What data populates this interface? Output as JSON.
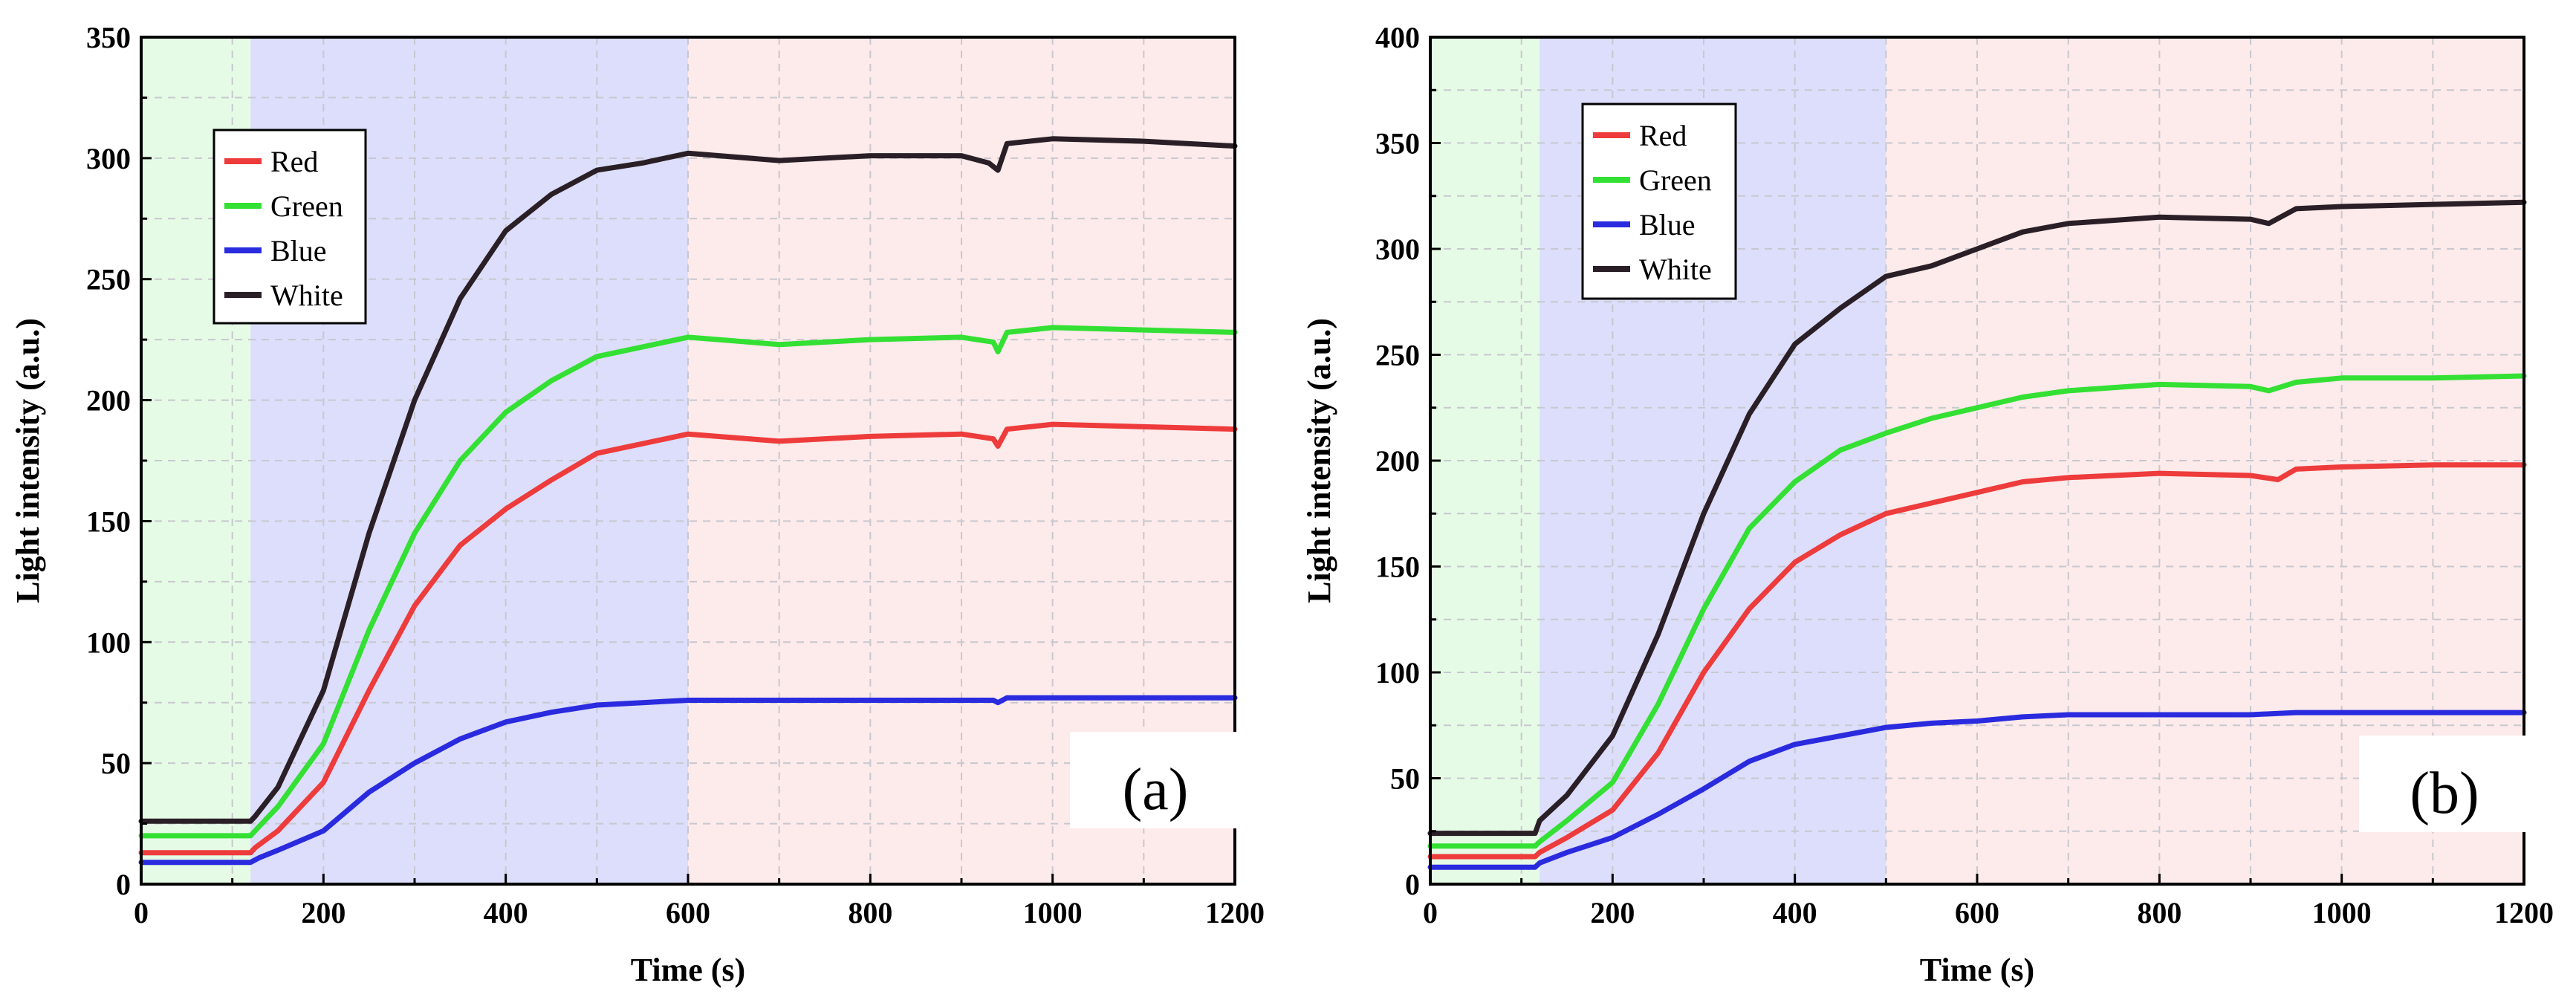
{
  "chart_data": [
    {
      "type": "line",
      "panel_label": "(a)",
      "xlabel": "Time (s)",
      "ylabel": "Light intensity (a.u.)",
      "xlim": [
        0,
        1200
      ],
      "ylim": [
        0,
        350
      ],
      "xticks": [
        0,
        200,
        400,
        600,
        800,
        1000,
        1200
      ],
      "yticks": [
        0,
        50,
        100,
        150,
        200,
        250,
        300,
        350
      ],
      "grid": true,
      "legend_position": "top-left",
      "background_regions": [
        {
          "x": [
            0,
            120
          ],
          "color": "#e5fbe5"
        },
        {
          "x": [
            120,
            600
          ],
          "color": "#dcdefb"
        },
        {
          "x": [
            600,
            1200
          ],
          "color": "#fdeaea"
        }
      ],
      "series": [
        {
          "name": "Red",
          "color": "#ee3b3b",
          "points": [
            [
              0,
              13
            ],
            [
              120,
              13
            ],
            [
              125,
              15
            ],
            [
              150,
              22
            ],
            [
              200,
              42
            ],
            [
              250,
              80
            ],
            [
              300,
              115
            ],
            [
              350,
              140
            ],
            [
              400,
              155
            ],
            [
              450,
              167
            ],
            [
              500,
              178
            ],
            [
              550,
              182
            ],
            [
              600,
              186
            ],
            [
              700,
              183
            ],
            [
              800,
              185
            ],
            [
              900,
              186
            ],
            [
              935,
              184
            ],
            [
              940,
              181
            ],
            [
              950,
              188
            ],
            [
              1000,
              190
            ],
            [
              1100,
              189
            ],
            [
              1200,
              188
            ]
          ]
        },
        {
          "name": "Green",
          "color": "#33e033",
          "points": [
            [
              0,
              20
            ],
            [
              120,
              20
            ],
            [
              125,
              22
            ],
            [
              150,
              32
            ],
            [
              200,
              58
            ],
            [
              250,
              105
            ],
            [
              300,
              145
            ],
            [
              350,
              175
            ],
            [
              400,
              195
            ],
            [
              450,
              208
            ],
            [
              500,
              218
            ],
            [
              550,
              222
            ],
            [
              600,
              226
            ],
            [
              700,
              223
            ],
            [
              800,
              225
            ],
            [
              900,
              226
            ],
            [
              935,
              224
            ],
            [
              940,
              220
            ],
            [
              950,
              228
            ],
            [
              1000,
              230
            ],
            [
              1100,
              229
            ],
            [
              1200,
              228
            ]
          ]
        },
        {
          "name": "Blue",
          "color": "#2a2adf",
          "points": [
            [
              0,
              9
            ],
            [
              120,
              9
            ],
            [
              130,
              11
            ],
            [
              150,
              14
            ],
            [
              200,
              22
            ],
            [
              250,
              38
            ],
            [
              300,
              50
            ],
            [
              350,
              60
            ],
            [
              400,
              67
            ],
            [
              450,
              71
            ],
            [
              500,
              74
            ],
            [
              550,
              75
            ],
            [
              600,
              76
            ],
            [
              800,
              76
            ],
            [
              935,
              76
            ],
            [
              940,
              75
            ],
            [
              950,
              77
            ],
            [
              1200,
              77
            ]
          ]
        },
        {
          "name": "White",
          "color": "#2a1f26",
          "points": [
            [
              0,
              26
            ],
            [
              120,
              26
            ],
            [
              125,
              28
            ],
            [
              150,
              40
            ],
            [
              200,
              80
            ],
            [
              250,
              145
            ],
            [
              300,
              200
            ],
            [
              350,
              242
            ],
            [
              400,
              270
            ],
            [
              450,
              285
            ],
            [
              500,
              295
            ],
            [
              550,
              298
            ],
            [
              600,
              302
            ],
            [
              700,
              299
            ],
            [
              800,
              301
            ],
            [
              900,
              301
            ],
            [
              930,
              298
            ],
            [
              940,
              295
            ],
            [
              950,
              306
            ],
            [
              1000,
              308
            ],
            [
              1100,
              307
            ],
            [
              1200,
              305
            ]
          ]
        }
      ]
    },
    {
      "type": "line",
      "panel_label": "(b)",
      "xlabel": "Time (s)",
      "ylabel": "Light intensity (a.u.)",
      "xlim": [
        0,
        1200
      ],
      "ylim": [
        0,
        400
      ],
      "xticks": [
        0,
        200,
        400,
        600,
        800,
        1000,
        1200
      ],
      "yticks": [
        0,
        50,
        100,
        150,
        200,
        250,
        300,
        350,
        400
      ],
      "grid": true,
      "legend_position": "top-left",
      "background_regions": [
        {
          "x": [
            0,
            120
          ],
          "color": "#e5fbe5"
        },
        {
          "x": [
            120,
            500
          ],
          "color": "#dcdefb"
        },
        {
          "x": [
            500,
            1200
          ],
          "color": "#fdeaea"
        }
      ],
      "series": [
        {
          "name": "Red",
          "color": "#ee3b3b",
          "points": [
            [
              0,
              13
            ],
            [
              115,
              13
            ],
            [
              120,
              15
            ],
            [
              150,
              22
            ],
            [
              200,
              35
            ],
            [
              250,
              62
            ],
            [
              300,
              100
            ],
            [
              350,
              130
            ],
            [
              400,
              152
            ],
            [
              450,
              165
            ],
            [
              500,
              175
            ],
            [
              550,
              180
            ],
            [
              600,
              185
            ],
            [
              650,
              190
            ],
            [
              700,
              192
            ],
            [
              800,
              194
            ],
            [
              900,
              193
            ],
            [
              930,
              191
            ],
            [
              950,
              196
            ],
            [
              1000,
              197
            ],
            [
              1100,
              198
            ],
            [
              1200,
              198
            ]
          ]
        },
        {
          "name": "Green",
          "color": "#33e033",
          "points": [
            [
              0,
              18
            ],
            [
              115,
              18
            ],
            [
              120,
              20
            ],
            [
              150,
              30
            ],
            [
              200,
              48
            ],
            [
              250,
              85
            ],
            [
              300,
              130
            ],
            [
              350,
              168
            ],
            [
              400,
              190
            ],
            [
              450,
              205
            ],
            [
              500,
              213
            ],
            [
              550,
              220
            ],
            [
              600,
              225
            ],
            [
              650,
              230
            ],
            [
              700,
              233
            ],
            [
              800,
              236
            ],
            [
              900,
              235
            ],
            [
              920,
              233
            ],
            [
              950,
              237
            ],
            [
              1000,
              239
            ],
            [
              1100,
              239
            ],
            [
              1200,
              240
            ]
          ]
        },
        {
          "name": "Blue",
          "color": "#2a2adf",
          "points": [
            [
              0,
              8
            ],
            [
              115,
              8
            ],
            [
              120,
              10
            ],
            [
              150,
              15
            ],
            [
              200,
              22
            ],
            [
              250,
              33
            ],
            [
              300,
              45
            ],
            [
              350,
              58
            ],
            [
              400,
              66
            ],
            [
              450,
              70
            ],
            [
              500,
              74
            ],
            [
              550,
              76
            ],
            [
              600,
              77
            ],
            [
              650,
              79
            ],
            [
              700,
              80
            ],
            [
              800,
              80
            ],
            [
              900,
              80
            ],
            [
              950,
              81
            ],
            [
              1200,
              81
            ]
          ]
        },
        {
          "name": "White",
          "color": "#2a1f26",
          "points": [
            [
              0,
              24
            ],
            [
              115,
              24
            ],
            [
              120,
              30
            ],
            [
              150,
              42
            ],
            [
              200,
              70
            ],
            [
              250,
              118
            ],
            [
              300,
              175
            ],
            [
              350,
              222
            ],
            [
              400,
              255
            ],
            [
              450,
              272
            ],
            [
              500,
              287
            ],
            [
              550,
              292
            ],
            [
              600,
              300
            ],
            [
              650,
              308
            ],
            [
              700,
              312
            ],
            [
              800,
              315
            ],
            [
              900,
              314
            ],
            [
              920,
              312
            ],
            [
              950,
              319
            ],
            [
              1000,
              320
            ],
            [
              1100,
              321
            ],
            [
              1200,
              322
            ]
          ]
        }
      ]
    }
  ]
}
